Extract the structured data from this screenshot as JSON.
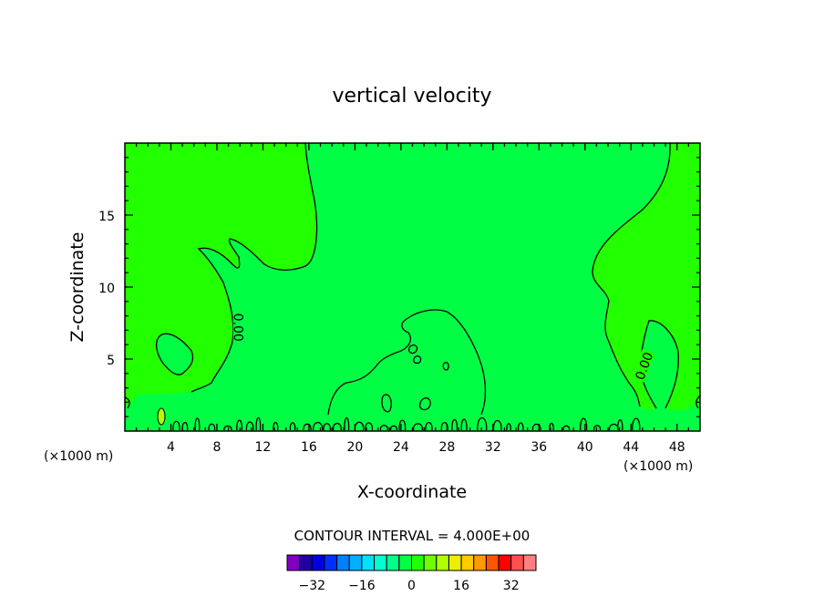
{
  "chart_data": {
    "type": "heatmap",
    "title": "vertical velocity",
    "xlabel": "X-coordinate",
    "ylabel": "Z-coordinate",
    "x_unit": "(×1000 m)",
    "x_unit_left": "(×1000 m)",
    "xlim": [
      0,
      50
    ],
    "ylim": [
      0,
      20
    ],
    "x_ticks": [
      4,
      8,
      12,
      16,
      20,
      24,
      28,
      32,
      36,
      40,
      44,
      48
    ],
    "y_ticks": [
      5,
      10,
      15
    ],
    "contour_interval_text": "CONTOUR INTERVAL = 4.000E+00",
    "contour_labels": [
      {
        "text": "0.00",
        "x": 9.8,
        "z": 7.2
      },
      {
        "text": "0.00",
        "x": 45.2,
        "z": 4.5
      }
    ],
    "field_colors": {
      "positive_bin": "#22ff00",
      "zero_bin": "#00ff44"
    },
    "colorbar": {
      "tick_labels": [
        "-32",
        "-16",
        "0",
        "16",
        "32"
      ],
      "tick_values": [
        -32,
        -16,
        0,
        16,
        32
      ],
      "range": [
        -40,
        40
      ],
      "colors": [
        "#8000bf",
        "#2000a0",
        "#0000e0",
        "#0030ff",
        "#0080ff",
        "#00b0ff",
        "#00e0ff",
        "#00ffd0",
        "#00ff88",
        "#00ff44",
        "#22ff00",
        "#70ff00",
        "#b0ff00",
        "#eeee00",
        "#ffcc00",
        "#ff9900",
        "#ff5500",
        "#ff0000",
        "#ff5050",
        "#ff8080"
      ]
    }
  }
}
